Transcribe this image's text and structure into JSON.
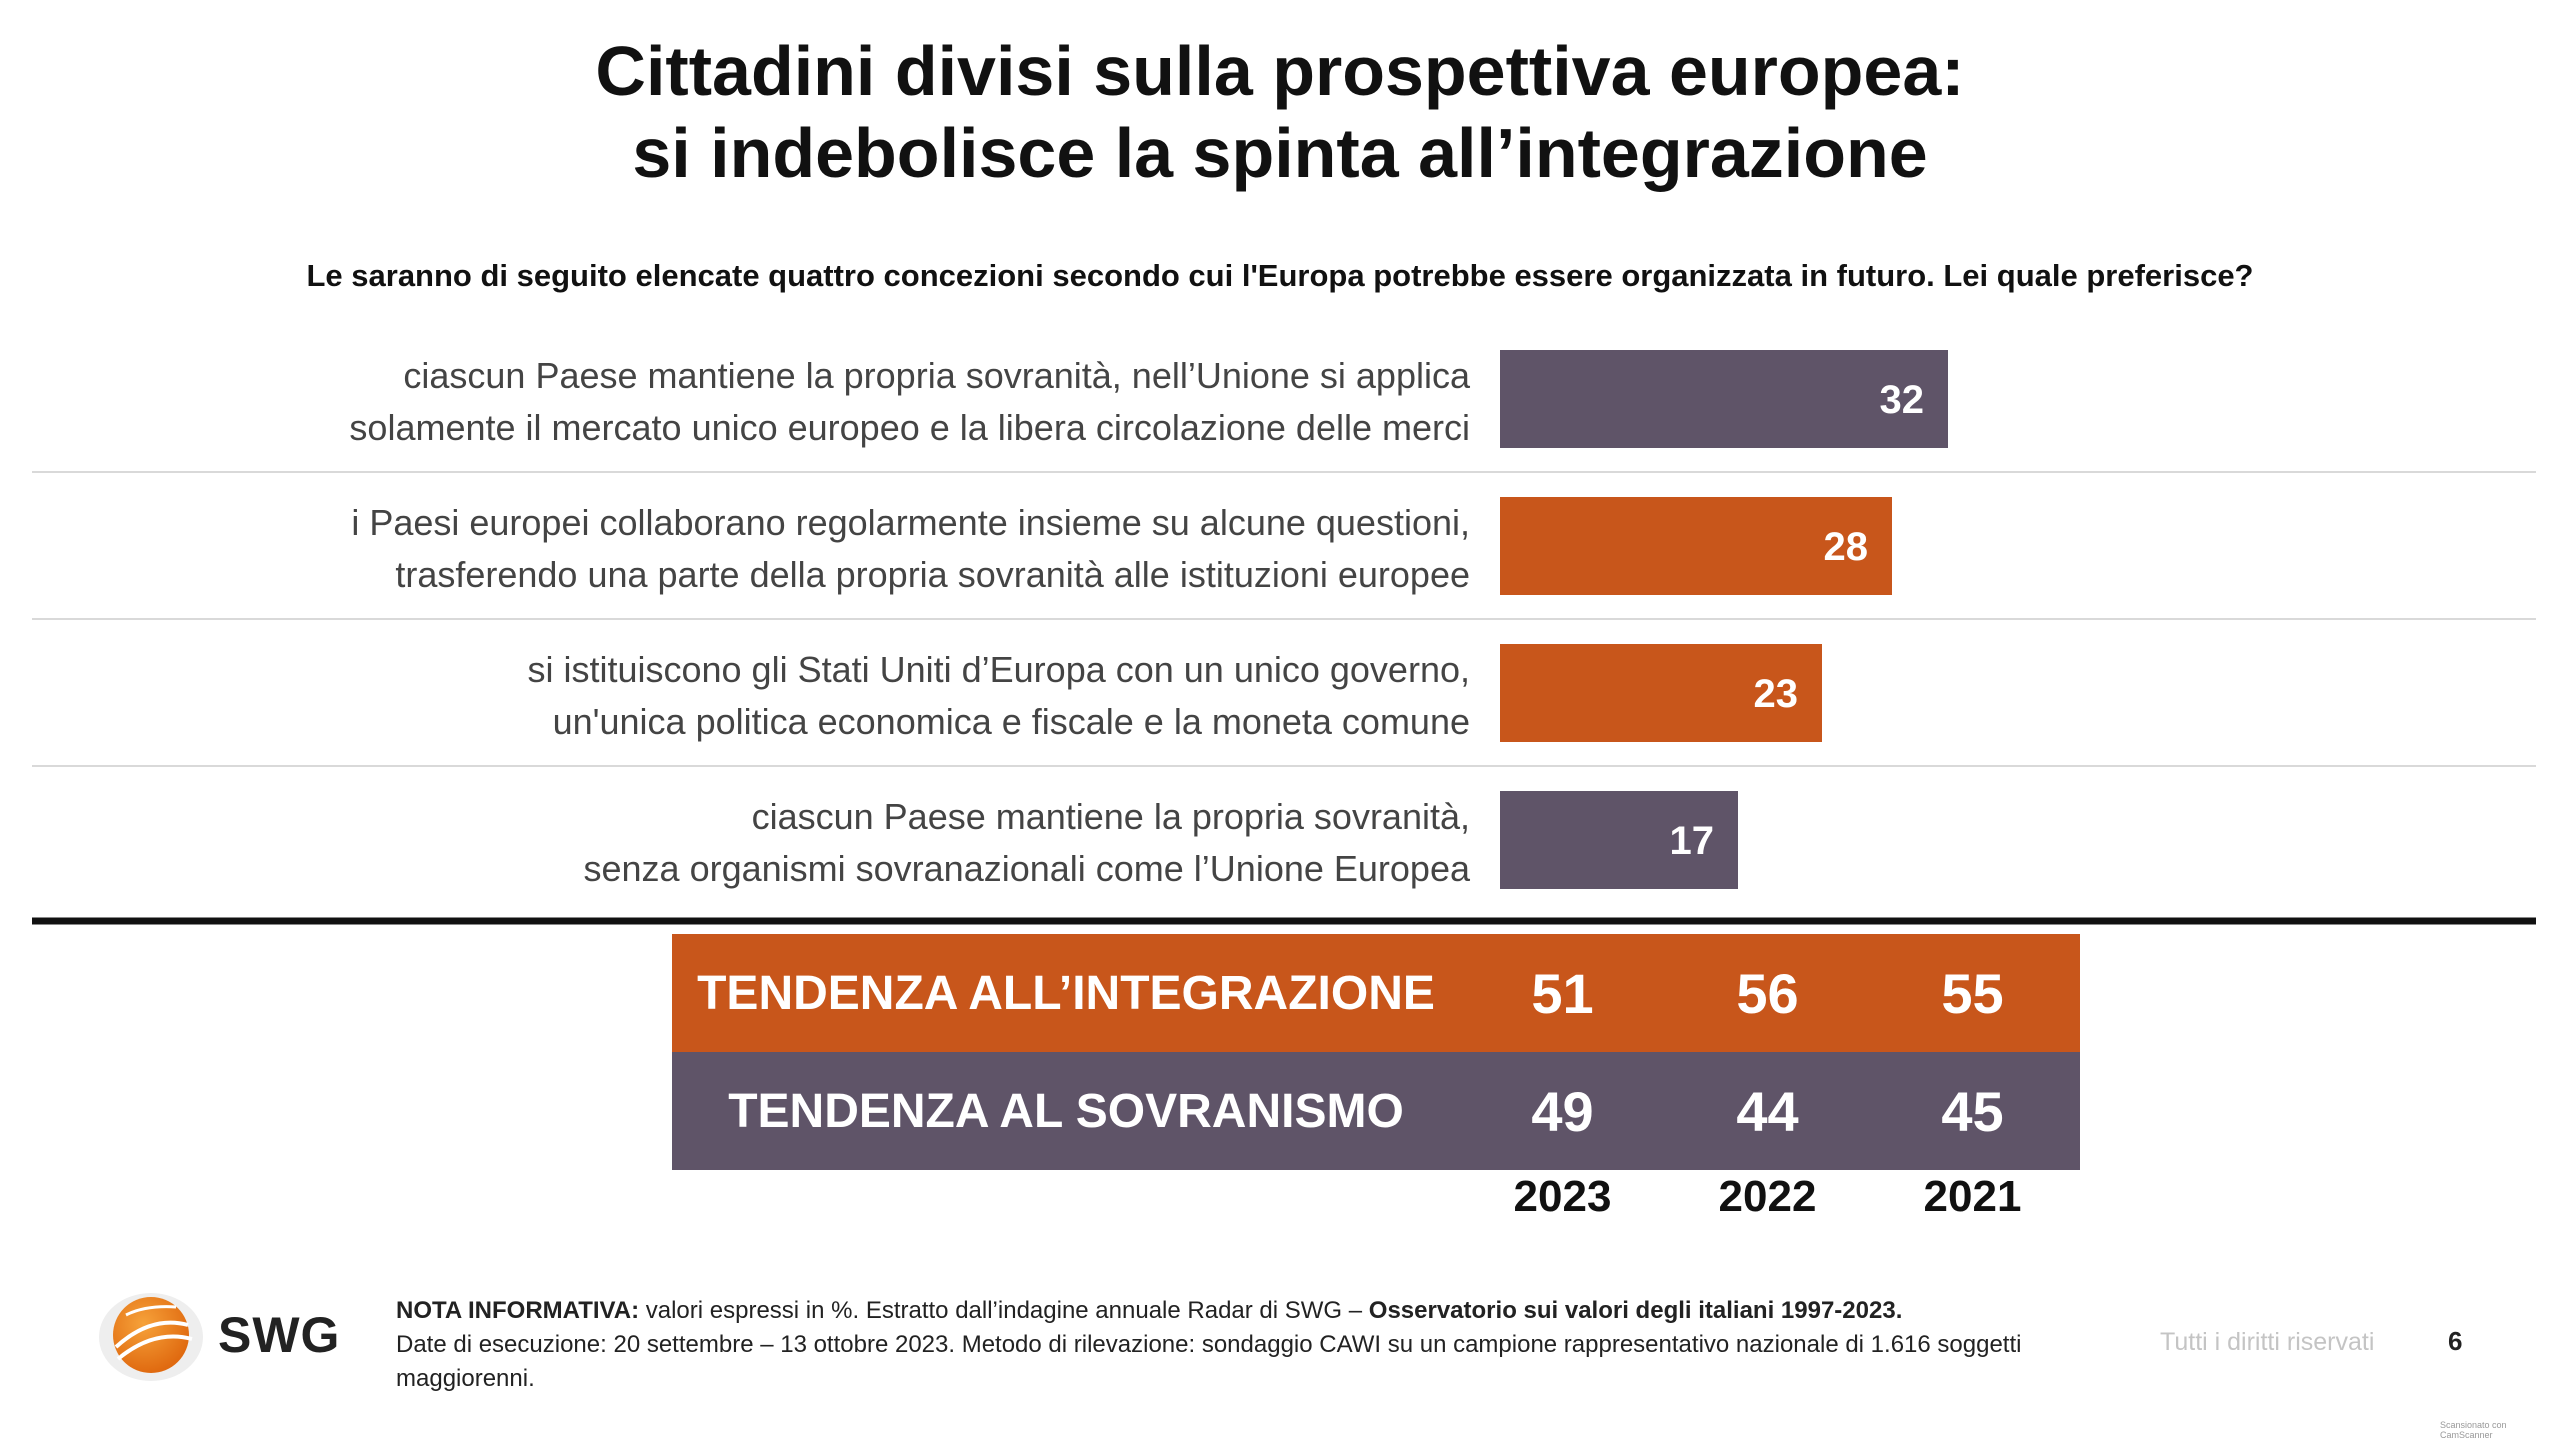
{
  "title": {
    "line1": "Cittadini divisi sulla prospettiva europea:",
    "line2": "si indebolisce la spinta all’integrazione"
  },
  "question": "Le saranno di seguito elencate quattro concezioni secondo cui l'Europa potrebbe essere organizzata in futuro. Lei quale preferisce?",
  "colors": {
    "orange": "#c8561b",
    "purple": "#5f5468",
    "divider": "#d9d9d9",
    "thick_line": "#111111"
  },
  "chart_data": {
    "type": "bar",
    "orientation": "horizontal",
    "unit": "%",
    "xlim": [
      0,
      100
    ],
    "categories": [
      [
        "ciascun Paese mantiene la propria sovranità, nell’Unione si applica",
        "solamente il mercato unico europeo e la libera circolazione delle merci"
      ],
      [
        "i Paesi europei collaborano regolarmente insieme su alcune questioni,",
        "trasferendo una parte della propria sovranità alle istituzioni europee"
      ],
      [
        "si istituiscono gli Stati Uniti d’Europa con un unico governo,",
        "un'unica politica economica e fiscale e la moneta comune"
      ],
      [
        "ciascun Paese mantiene la propria sovranità,",
        "senza organismi sovranazionali come l’Unione Europea"
      ]
    ],
    "values": [
      32,
      28,
      23,
      17
    ],
    "bar_colors": [
      "#5f5468",
      "#c8561b",
      "#c8561b",
      "#5f5468"
    ]
  },
  "summary": {
    "years": [
      "2023",
      "2022",
      "2021"
    ],
    "rows": [
      {
        "label": "TENDENZA ALL’INTEGRAZIONE",
        "values": [
          "51",
          "56",
          "55"
        ],
        "color": "#c8561b"
      },
      {
        "label": "TENDENZA AL SOVRANISMO",
        "values": [
          "49",
          "44",
          "45"
        ],
        "color": "#5f5468"
      }
    ]
  },
  "footer": {
    "logo_text": "SWG",
    "note_bold_1": "NOTA INFORMATIVA:",
    "note_text_1": " valori espressi in %. Estratto dall’indagine annuale Radar di SWG – ",
    "note_bold_2": "Osservatorio sui valori degli italiani 1997-2023.",
    "note_text_2": "Date di esecuzione: 20 settembre – 13 ottobre 2023. Metodo di rilevazione: sondaggio CAWI su un campione rappresentativo nazionale di 1.616 soggetti maggiorenni.",
    "rights": "Tutti i diritti riservati",
    "page_number": "6",
    "scanner": "Scansionato con CamScanner"
  }
}
